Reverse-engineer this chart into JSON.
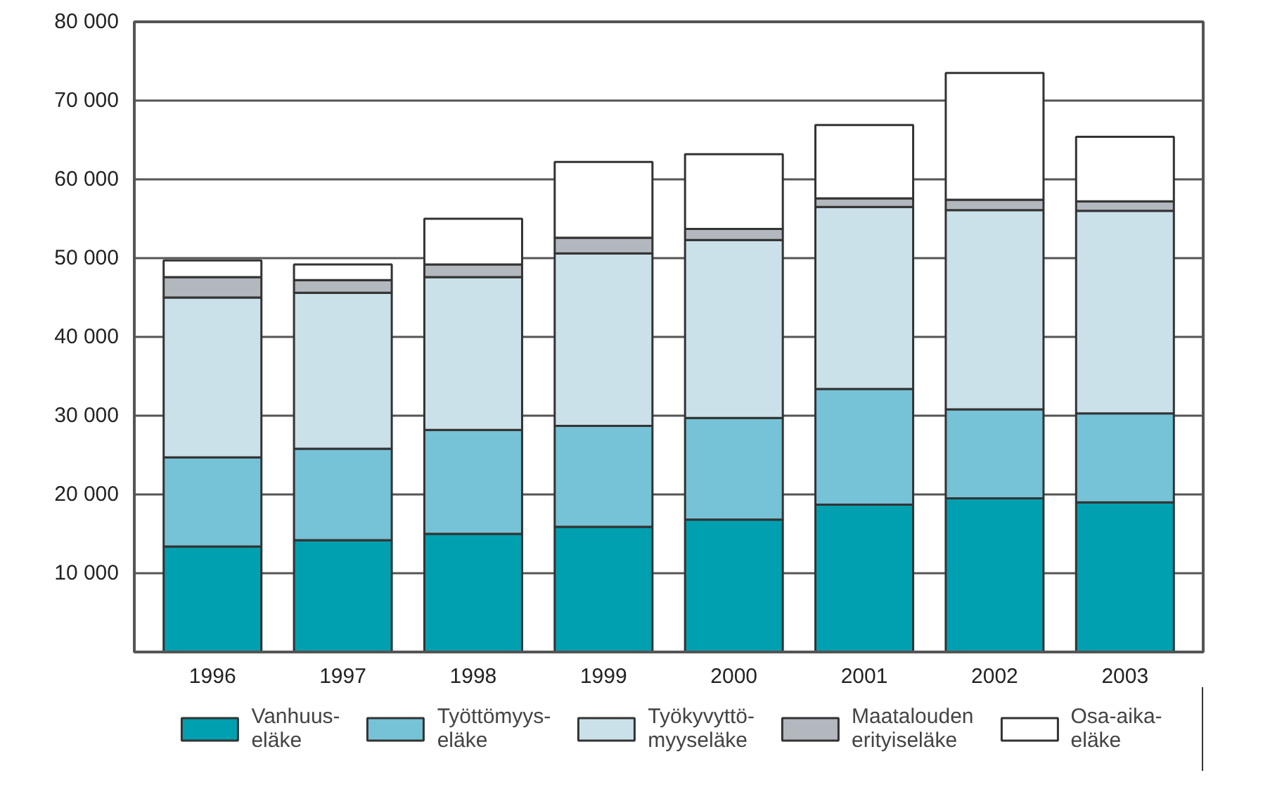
{
  "chart_data": {
    "type": "bar",
    "stacked": true,
    "categories": [
      "1996",
      "1997",
      "1998",
      "1999",
      "2000",
      "2001",
      "2002",
      "2003"
    ],
    "series": [
      {
        "name": "Vanhuus-\neläke",
        "color": "#00a0b0",
        "values": [
          13400,
          14200,
          15000,
          15900,
          16800,
          18700,
          19500,
          19000
        ]
      },
      {
        "name": "Työttömyys-\neläke",
        "color": "#76c2d6",
        "values": [
          11300,
          11600,
          13200,
          12800,
          12900,
          14700,
          11300,
          11300
        ]
      },
      {
        "name": "Työkyvyttö-\nmyyseläke",
        "color": "#cbe1e9",
        "values": [
          20300,
          19800,
          19400,
          21900,
          22600,
          23100,
          25300,
          25700
        ]
      },
      {
        "name": "Maatalouden\nerityiseläke",
        "color": "#b3b7be",
        "values": [
          2600,
          1600,
          1600,
          2000,
          1400,
          1100,
          1300,
          1200
        ]
      },
      {
        "name": "Osa-aika-\neläke",
        "color": "#ffffff",
        "values": [
          2100,
          2000,
          5800,
          9600,
          9500,
          9300,
          16100,
          8200
        ]
      }
    ],
    "ylim": [
      0,
      80000
    ],
    "yticks": [
      {
        "value": 0,
        "label": null
      },
      {
        "value": 10000,
        "label": "10 000"
      },
      {
        "value": 20000,
        "label": "20 000"
      },
      {
        "value": 30000,
        "label": "30 000"
      },
      {
        "value": 40000,
        "label": "40 000"
      },
      {
        "value": 50000,
        "label": "50 000"
      },
      {
        "value": 60000,
        "label": "60 000"
      },
      {
        "value": 70000,
        "label": "70 000"
      },
      {
        "value": 80000,
        "label": "80 000"
      }
    ],
    "grid": "y",
    "legend": "bottom"
  }
}
